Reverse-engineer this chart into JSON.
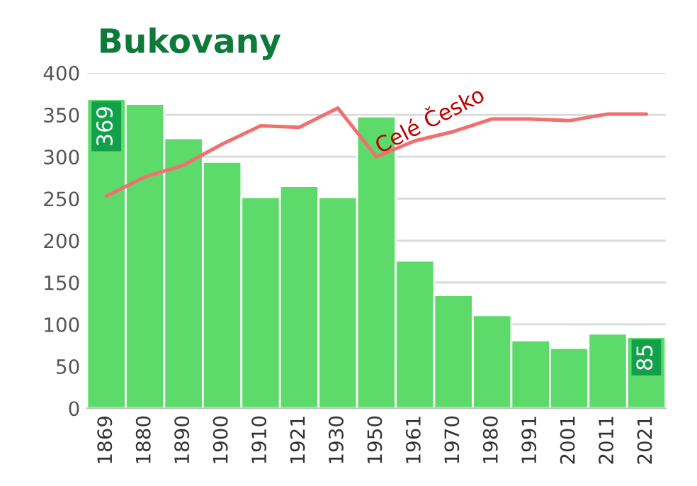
{
  "chart_data": {
    "type": "bar",
    "title": "Bukovany",
    "categories": [
      "1869",
      "1880",
      "1890",
      "1900",
      "1910",
      "1921",
      "1930",
      "1950",
      "1961",
      "1970",
      "1980",
      "1991",
      "2001",
      "2011",
      "2021"
    ],
    "series": [
      {
        "color": "#5cdb6a",
        "values": [
          369,
          363,
          322,
          294,
          252,
          265,
          252,
          348,
          176,
          135,
          111,
          81,
          72,
          89,
          85
        ],
        "value_labels": [
          "369",
          null,
          null,
          null,
          null,
          null,
          null,
          null,
          null,
          null,
          null,
          null,
          null,
          null,
          "85"
        ]
      },
      {
        "type": "line",
        "name": "Celé Česko",
        "color": "#f07070",
        "values": [
          253,
          276,
          290,
          315,
          337,
          335,
          358,
          300,
          319,
          330,
          345,
          345,
          343,
          351,
          351
        ]
      }
    ],
    "ylim": [
      0,
      400
    ],
    "yticks": [
      0,
      50,
      100,
      150,
      200,
      250,
      300,
      350,
      400
    ],
    "grid": "y",
    "legend": false
  }
}
